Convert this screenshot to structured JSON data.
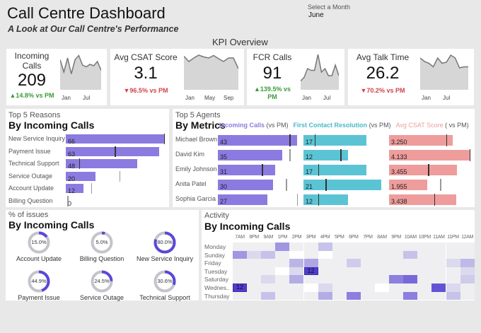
{
  "header": {
    "title": "Call Centre Dashboard",
    "subtitle": "A Look at Our Call Centre's Performance",
    "month_label": "Select a Month",
    "month_value": "June",
    "section": "KPI Overview"
  },
  "kpis": [
    {
      "title": "Incoming Calls",
      "value": "209",
      "change": "▲14.8% vs PM",
      "direction": "up",
      "axis": [
        "Jan",
        "Jul"
      ],
      "sparkline": [
        0.85,
        0.5,
        0.9,
        0.45,
        0.85,
        0.97,
        0.7,
        0.65,
        0.72,
        0.68,
        0.8,
        0.55
      ]
    },
    {
      "title": "Avg CSAT Score",
      "value": "3.1",
      "change": "▼96.5% vs PM",
      "direction": "down",
      "axis": [
        "Jan",
        "May",
        "Sep"
      ],
      "sparkline": [
        0.95,
        0.8,
        0.9,
        0.98,
        0.93,
        0.9,
        0.97,
        0.88,
        0.8,
        0.9,
        0.9,
        0.6
      ]
    },
    {
      "title": "FCR Calls",
      "value": "91",
      "change": "▲139.5% vs PM",
      "direction": "up",
      "axis": [
        "Jan",
        "Jul"
      ],
      "sparkline": [
        0.25,
        0.35,
        0.6,
        0.55,
        0.55,
        1.0,
        0.5,
        0.6,
        0.4,
        0.4,
        0.7,
        0.4
      ]
    },
    {
      "title": "Avg Talk Time",
      "value": "26.2",
      "change": "▼70.2% vs PM",
      "direction": "down",
      "axis": [
        "Jan",
        "Jul"
      ],
      "sparkline": [
        0.9,
        0.8,
        0.75,
        0.65,
        0.9,
        0.75,
        0.78,
        0.98,
        0.9,
        0.62,
        0.65,
        0.65
      ]
    }
  ],
  "reasons": {
    "subtitle": "Top 5 Reasons",
    "title": "By Incoming Calls",
    "items": [
      {
        "label": "New Service Inquiry",
        "value": 66,
        "pm": 66
      },
      {
        "label": "Payment Issue",
        "value": 63,
        "pm": 33
      },
      {
        "label": "Technical Support",
        "value": 48,
        "pm": 9
      },
      {
        "label": "Service Outage",
        "value": 20,
        "pm": 36
      },
      {
        "label": "Account Update",
        "value": 12,
        "pm": 17
      },
      {
        "label": "Billing Question",
        "value": 0,
        "pm": 1
      }
    ]
  },
  "agents": {
    "subtitle": "Top 5 Agents",
    "title": "By Metrics",
    "col_incoming": "Incoming Calls",
    "col_fcr": "First Contact Resolution",
    "col_csat": "Avg CSAT Score",
    "vs_pm": "(vs PM)",
    "vs_pm_csat": "( vs PM)",
    "colors": {
      "incoming": "#8b7be0",
      "fcr": "#5bc4d4",
      "csat": "#ee9c9c"
    },
    "rows": [
      {
        "name": "Michael Brown",
        "incoming": "43",
        "incoming_pm": 39,
        "fcr": "17",
        "fcr_pm": 3,
        "csat": "3.250",
        "csat_pm": 2.92
      },
      {
        "name": "David Kim",
        "incoming": "35",
        "incoming_pm": 39,
        "fcr": "12",
        "fcr_pm": 10,
        "csat": "4.133",
        "csat_pm": 4.1
      },
      {
        "name": "Emily Johnson",
        "incoming": "31",
        "incoming_pm": 24,
        "fcr": "17",
        "fcr_pm": 4,
        "csat": "3.455",
        "csat_pm": 2.0
      },
      {
        "name": "Anita Patel",
        "incoming": "30",
        "incoming_pm": 37,
        "fcr": "21",
        "fcr_pm": 6,
        "csat": "1.955",
        "csat_pm": 2.6
      },
      {
        "name": "Sophia Garcia",
        "incoming": "27",
        "incoming_pm": 43,
        "fcr": "12",
        "fcr_pm": 4,
        "csat": "3.438",
        "csat_pm": 2.3
      }
    ]
  },
  "issues": {
    "subtitle": "% of issues",
    "title": "By Incoming Calls",
    "items": [
      {
        "label": "Account Update",
        "pct": 15.0,
        "text": "15.0%"
      },
      {
        "label": "Billing Question",
        "pct": 5.0,
        "text": "5.0%"
      },
      {
        "label": "New Service Inquiry",
        "pct": 80.0,
        "text": "80.0%"
      },
      {
        "label": "Payment Issue",
        "pct": 44.9,
        "text": "44.9%"
      },
      {
        "label": "Service Outage",
        "pct": 24.5,
        "text": "24.5%"
      },
      {
        "label": "Technical Support",
        "pct": 30.6,
        "text": "30.6%"
      }
    ]
  },
  "activity": {
    "subtitle": "Activity",
    "title": "By Incoming Calls",
    "hours": [
      "7AM",
      "8PM",
      "9AM",
      "1PM",
      "2PM",
      "3PM",
      "4PM",
      "5PM",
      "6PM",
      "7PM",
      "8AM",
      "9PM",
      "10AM",
      "10PM",
      "11AM",
      "11PM",
      "12AM"
    ],
    "days": [
      "Monday",
      "Sunday",
      "Friday",
      "Tuesday",
      "Saturday",
      "Wednes..",
      "Thursday"
    ],
    "intensity": [
      [
        0,
        0,
        0,
        2,
        0,
        0,
        1,
        0,
        0,
        0,
        0,
        0,
        0,
        0,
        0,
        0,
        0
      ],
      [
        2,
        0.5,
        1,
        0,
        -1,
        0,
        -1,
        0,
        0,
        0,
        0,
        0,
        1,
        0,
        0,
        0,
        0
      ],
      [
        0,
        0,
        0,
        0,
        1.3,
        1.6,
        0,
        0,
        0.8,
        0,
        0,
        0,
        0,
        0,
        0,
        0.5,
        1.2
      ],
      [
        0,
        0,
        0,
        -1,
        0.5,
        4,
        0,
        0,
        0,
        0,
        0,
        0,
        0,
        0,
        0,
        0,
        0.5
      ],
      [
        0,
        0,
        0.5,
        0,
        1.5,
        0,
        0,
        0,
        0,
        0,
        0,
        2.5,
        3,
        0,
        0,
        0,
        0.8
      ],
      [
        4,
        0,
        0,
        0,
        0,
        -1,
        0.5,
        0,
        0,
        0,
        -1,
        0,
        0,
        0,
        3.5,
        0.5,
        0
      ],
      [
        0,
        0,
        1,
        0,
        0,
        0,
        1.5,
        0,
        2.5,
        0,
        0,
        0,
        2.5,
        0,
        0,
        1,
        0
      ]
    ],
    "labels": [
      {
        "row": 3,
        "col": 5,
        "text": "12"
      },
      {
        "row": 5,
        "col": 0,
        "text": "12"
      }
    ]
  }
}
